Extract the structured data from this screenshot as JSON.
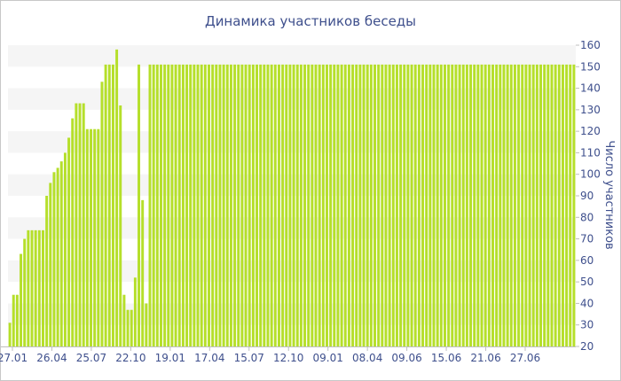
{
  "chart_data": {
    "type": "bar",
    "title": "Динамика участников беседы",
    "ylabel": "Число участников",
    "xlabel": "",
    "ylim": [
      20,
      160
    ],
    "y_ticks": [
      20,
      30,
      40,
      50,
      60,
      70,
      80,
      90,
      100,
      110,
      120,
      130,
      140,
      150,
      160
    ],
    "x_tick_labels": [
      "27.01",
      "26.04",
      "25.07",
      "22.10",
      "19.01",
      "17.04",
      "15.07",
      "12.10",
      "09.01",
      "08.04",
      "09.06",
      "15.06",
      "21.06",
      "27.06"
    ],
    "grid": "horizontal bands",
    "bar_color": "#b5df2a",
    "band_color": "#f5f5f5",
    "values": [
      31,
      44,
      44,
      63,
      70,
      74,
      74,
      74,
      74,
      74,
      90,
      96,
      101,
      103,
      106,
      110,
      117,
      126,
      133,
      133,
      133,
      121,
      121,
      121,
      121,
      143,
      151,
      151,
      151,
      158,
      132,
      44,
      37,
      37,
      52,
      151,
      88,
      40,
      151,
      151,
      151,
      151,
      151,
      151,
      151,
      151,
      151,
      151,
      151,
      151,
      151,
      151,
      151,
      151,
      151,
      151,
      151,
      151,
      151,
      151,
      151,
      151,
      151,
      151,
      151,
      151,
      151,
      151,
      151,
      151,
      151,
      151,
      151,
      151,
      151,
      151,
      151,
      151,
      151,
      151,
      151,
      151,
      151,
      151,
      151,
      151,
      151,
      151,
      151,
      151,
      151,
      151,
      151,
      151,
      151,
      151,
      151,
      151,
      151,
      151,
      151,
      151,
      151,
      151,
      151,
      151,
      151,
      151,
      151,
      151,
      151,
      151,
      151,
      151,
      151,
      151,
      151,
      151,
      151,
      151,
      151,
      151,
      151,
      151,
      151,
      151,
      151,
      151,
      151,
      151,
      151,
      151,
      151,
      151,
      151,
      151,
      151,
      151,
      151,
      151,
      151,
      151,
      151,
      151,
      151,
      151,
      151,
      151,
      151,
      151,
      151,
      151,
      151,
      151
    ]
  }
}
